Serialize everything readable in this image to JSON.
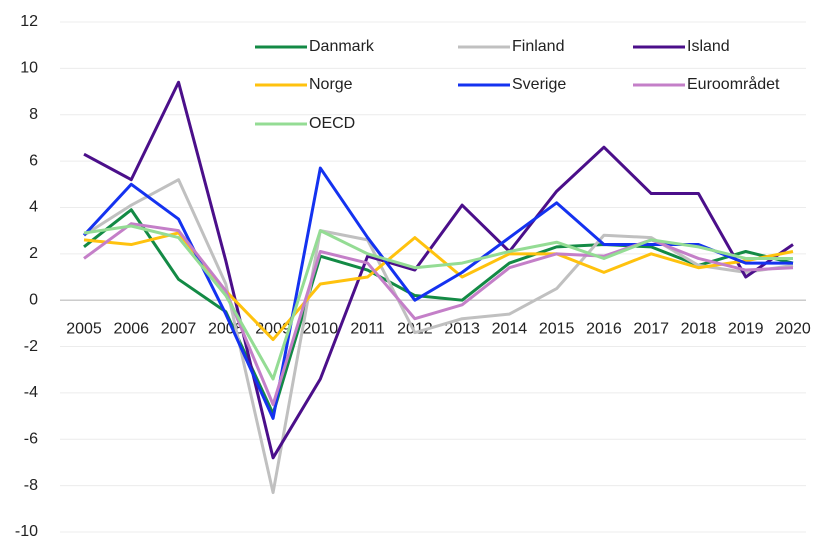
{
  "chart_data": {
    "type": "line",
    "categories": [
      "2005",
      "2006",
      "2007",
      "2008",
      "2009",
      "2010",
      "2011",
      "2012",
      "2013",
      "2014",
      "2015",
      "2016",
      "2017",
      "2018",
      "2019",
      "2020"
    ],
    "series": [
      {
        "name": "Danmark",
        "color": "#138a45",
        "values": [
          2.3,
          3.9,
          0.9,
          -0.5,
          -4.9,
          1.9,
          1.3,
          0.2,
          0.0,
          1.6,
          2.3,
          2.4,
          2.3,
          1.5,
          2.1,
          1.6
        ]
      },
      {
        "name": "Finland",
        "color": "#c0c0c0",
        "values": [
          2.8,
          4.1,
          5.2,
          0.7,
          -8.3,
          3.0,
          2.6,
          -1.4,
          -0.8,
          -0.6,
          0.5,
          2.8,
          2.7,
          1.5,
          1.2,
          1.5
        ]
      },
      {
        "name": "Island",
        "color": "#4b0f8a",
        "values": [
          6.3,
          5.2,
          9.4,
          1.7,
          -6.8,
          -3.4,
          1.9,
          1.3,
          4.1,
          2.1,
          4.7,
          6.6,
          4.6,
          4.6,
          1.0,
          2.4
        ]
      },
      {
        "name": "Norge",
        "color": "#ffc20e",
        "values": [
          2.6,
          2.4,
          2.9,
          0.4,
          -1.7,
          0.7,
          1.0,
          2.7,
          1.0,
          2.0,
          2.0,
          1.2,
          2.0,
          1.4,
          1.7,
          2.1
        ]
      },
      {
        "name": "Sverige",
        "color": "#1432f0",
        "values": [
          2.8,
          5.0,
          3.5,
          -0.6,
          -5.1,
          5.7,
          2.7,
          0.0,
          1.2,
          2.7,
          4.2,
          2.4,
          2.4,
          2.4,
          1.6,
          1.6
        ]
      },
      {
        "name": "Euroområdet",
        "color": "#c47fc8",
        "values": [
          1.8,
          3.3,
          3.0,
          0.4,
          -4.5,
          2.1,
          1.6,
          -0.8,
          -0.2,
          1.4,
          2.0,
          1.9,
          2.6,
          1.8,
          1.3,
          1.4
        ]
      },
      {
        "name": "OECD",
        "color": "#94dc94",
        "values": [
          2.9,
          3.2,
          2.7,
          0.2,
          -3.4,
          3.0,
          2.0,
          1.4,
          1.6,
          2.1,
          2.5,
          1.8,
          2.6,
          2.3,
          1.8,
          1.8
        ]
      }
    ],
    "ylim": [
      -10,
      12
    ],
    "yticks": [
      -10,
      -8,
      -6,
      -4,
      -2,
      0,
      2,
      4,
      6,
      8,
      10,
      12
    ],
    "grid": true
  }
}
